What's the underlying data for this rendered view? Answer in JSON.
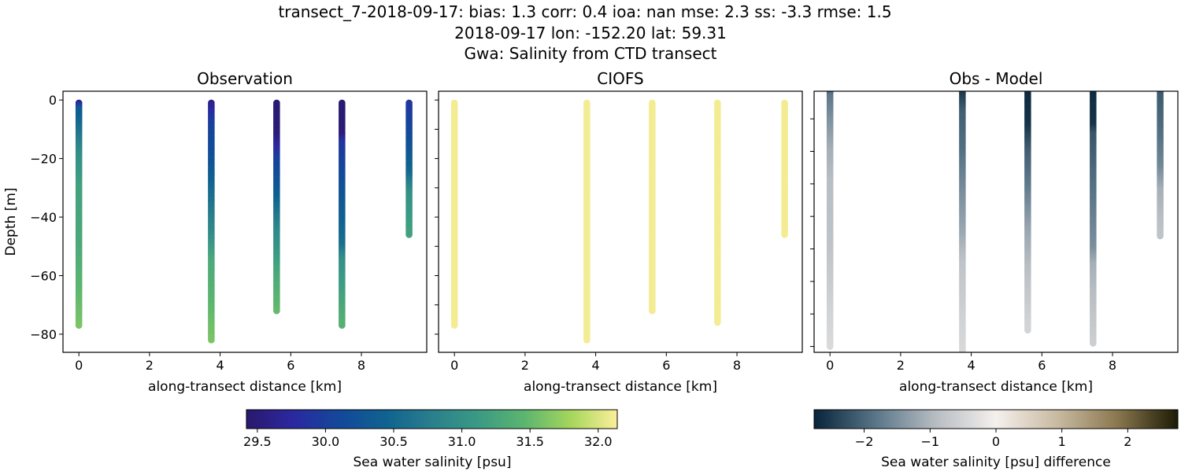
{
  "suptitle": {
    "line1": "transect_7-2018-09-17: bias: 1.3  corr: 0.4  ioa: nan  mse: 2.3  ss: -3.3  rmse: 1.5",
    "line2": "2018-09-17 lon: -152.20 lat: 59.31",
    "line3": "Gwa: Salinity from CTD transect"
  },
  "chart_data": [
    {
      "type": "scatter",
      "title": "Observation",
      "xlabel": "along-transect distance [km]",
      "ylabel": "Depth [m]",
      "xlim": [
        -0.45,
        9.85
      ],
      "ylim": [
        -86.2,
        3
      ],
      "xticks": [
        "0",
        "2",
        "4",
        "6",
        "8"
      ],
      "yticks": [
        "0",
        "−20",
        "−40",
        "−60",
        "−80"
      ],
      "colormap": "haline",
      "casts": [
        {
          "x": 0,
          "profile": [
            [
              -1,
              29.6
            ],
            [
              -3,
              30.3
            ],
            [
              -10,
              30.6
            ],
            [
              -20,
              31.0
            ],
            [
              -30,
              31.2
            ],
            [
              -50,
              31.3
            ],
            [
              -77,
              31.6
            ]
          ]
        },
        {
          "x": 3.75,
          "profile": [
            [
              -1,
              29.6
            ],
            [
              -8,
              30.0
            ],
            [
              -20,
              30.2
            ],
            [
              -30,
              30.5
            ],
            [
              -45,
              30.9
            ],
            [
              -55,
              31.3
            ],
            [
              -82,
              31.6
            ]
          ]
        },
        {
          "x": 5.6,
          "profile": [
            [
              -1,
              29.45
            ],
            [
              -12,
              29.5
            ],
            [
              -20,
              30.0
            ],
            [
              -30,
              30.3
            ],
            [
              -45,
              30.9
            ],
            [
              -60,
              31.3
            ],
            [
              -72,
              31.5
            ]
          ]
        },
        {
          "x": 7.45,
          "profile": [
            [
              -1,
              29.45
            ],
            [
              -12,
              29.5
            ],
            [
              -15,
              29.9
            ],
            [
              -30,
              30.2
            ],
            [
              -50,
              30.6
            ],
            [
              -55,
              31.0
            ],
            [
              -77,
              31.4
            ]
          ]
        },
        {
          "x": 9.35,
          "profile": [
            [
              -1,
              29.9
            ],
            [
              -15,
              30.2
            ],
            [
              -25,
              30.5
            ],
            [
              -32,
              31.0
            ],
            [
              -46,
              31.2
            ]
          ]
        }
      ]
    },
    {
      "type": "scatter",
      "title": "CIOFS",
      "xlabel": "along-transect distance [km]",
      "xlim": [
        -0.45,
        9.85
      ],
      "ylim": [
        -86.2,
        3
      ],
      "xticks": [
        "0",
        "2",
        "4",
        "6",
        "8"
      ],
      "colormap": "haline",
      "casts": [
        {
          "x": 0,
          "profile": [
            [
              -1,
              32.1
            ],
            [
              -77,
              32.1
            ]
          ]
        },
        {
          "x": 3.75,
          "profile": [
            [
              -1,
              32.1
            ],
            [
              -82,
              32.1
            ]
          ]
        },
        {
          "x": 5.6,
          "profile": [
            [
              -1,
              32.1
            ],
            [
              -72,
              32.1
            ]
          ]
        },
        {
          "x": 7.45,
          "profile": [
            [
              -1,
              32.1
            ],
            [
              -76,
              32.1
            ]
          ]
        },
        {
          "x": 9.35,
          "profile": [
            [
              -1,
              32.1
            ],
            [
              -46,
              32.1
            ]
          ]
        }
      ]
    },
    {
      "type": "scatter",
      "title": "Obs - Model",
      "xlabel": "along-transect distance [km]",
      "xlim": [
        -0.45,
        9.85
      ],
      "ylim": [
        -81.8,
        -1.5
      ],
      "xticks": [
        "0",
        "2",
        "4",
        "6",
        "8"
      ],
      "colormap": "diff",
      "casts": [
        {
          "x": 0,
          "profile": [
            [
              0,
              -2.5
            ],
            [
              -3,
              -1.8
            ],
            [
              -10,
              -1.5
            ],
            [
              -20,
              -1.1
            ],
            [
              -30,
              -0.9
            ],
            [
              -50,
              -0.8
            ],
            [
              -80,
              -0.4
            ]
          ]
        },
        {
          "x": 3.75,
          "profile": [
            [
              0,
              -2.7
            ],
            [
              -8,
              -2.1
            ],
            [
              -20,
              -1.9
            ],
            [
              -30,
              -1.6
            ],
            [
              -45,
              -1.2
            ],
            [
              -55,
              -0.8
            ],
            [
              -90,
              -0.3
            ]
          ]
        },
        {
          "x": 5.6,
          "profile": [
            [
              0,
              -2.7
            ],
            [
              -12,
              -2.6
            ],
            [
              -20,
              -2.1
            ],
            [
              -30,
              -1.8
            ],
            [
              -45,
              -1.2
            ],
            [
              -60,
              -0.8
            ],
            [
              -75,
              -0.5
            ]
          ]
        },
        {
          "x": 7.45,
          "profile": [
            [
              0,
              -2.7
            ],
            [
              -12,
              -2.6
            ],
            [
              -15,
              -2.2
            ],
            [
              -30,
              -1.9
            ],
            [
              -50,
              -1.5
            ],
            [
              -55,
              -1.1
            ],
            [
              -79,
              -0.6
            ]
          ]
        },
        {
          "x": 9.35,
          "profile": [
            [
              0,
              -2.2
            ],
            [
              -15,
              -1.9
            ],
            [
              -25,
              -1.6
            ],
            [
              -32,
              -1.1
            ],
            [
              -46,
              -0.8
            ]
          ]
        }
      ]
    }
  ],
  "colorbars": [
    {
      "label": "Sea water salinity [psu]",
      "range": [
        29.42,
        32.14
      ],
      "ticks": [
        29.5,
        30.0,
        30.5,
        31.0,
        31.5,
        32.0
      ],
      "tick_labels": [
        "29.5",
        "30.0",
        "30.5",
        "31.0",
        "31.5",
        "32.0"
      ],
      "colormap": "haline"
    },
    {
      "label": "Sea water salinity [psu] difference",
      "range": [
        -2.76,
        2.76
      ],
      "ticks": [
        -2,
        -1,
        0,
        1,
        2
      ],
      "tick_labels": [
        "−2",
        "−1",
        "0",
        "1",
        "2"
      ],
      "colormap": "diff"
    }
  ],
  "colormaps": {
    "haline": [
      "#2a186c",
      "#2b28a0",
      "#13489a",
      "#0f6290",
      "#2a7f8c",
      "#3a9a84",
      "#5cb56f",
      "#a5d65c",
      "#fdef9a"
    ],
    "diff": [
      "#08243b",
      "#587487",
      "#b7bdc2",
      "#f4f0ed",
      "#c9bba2",
      "#8a784f",
      "#1c1a05"
    ]
  }
}
